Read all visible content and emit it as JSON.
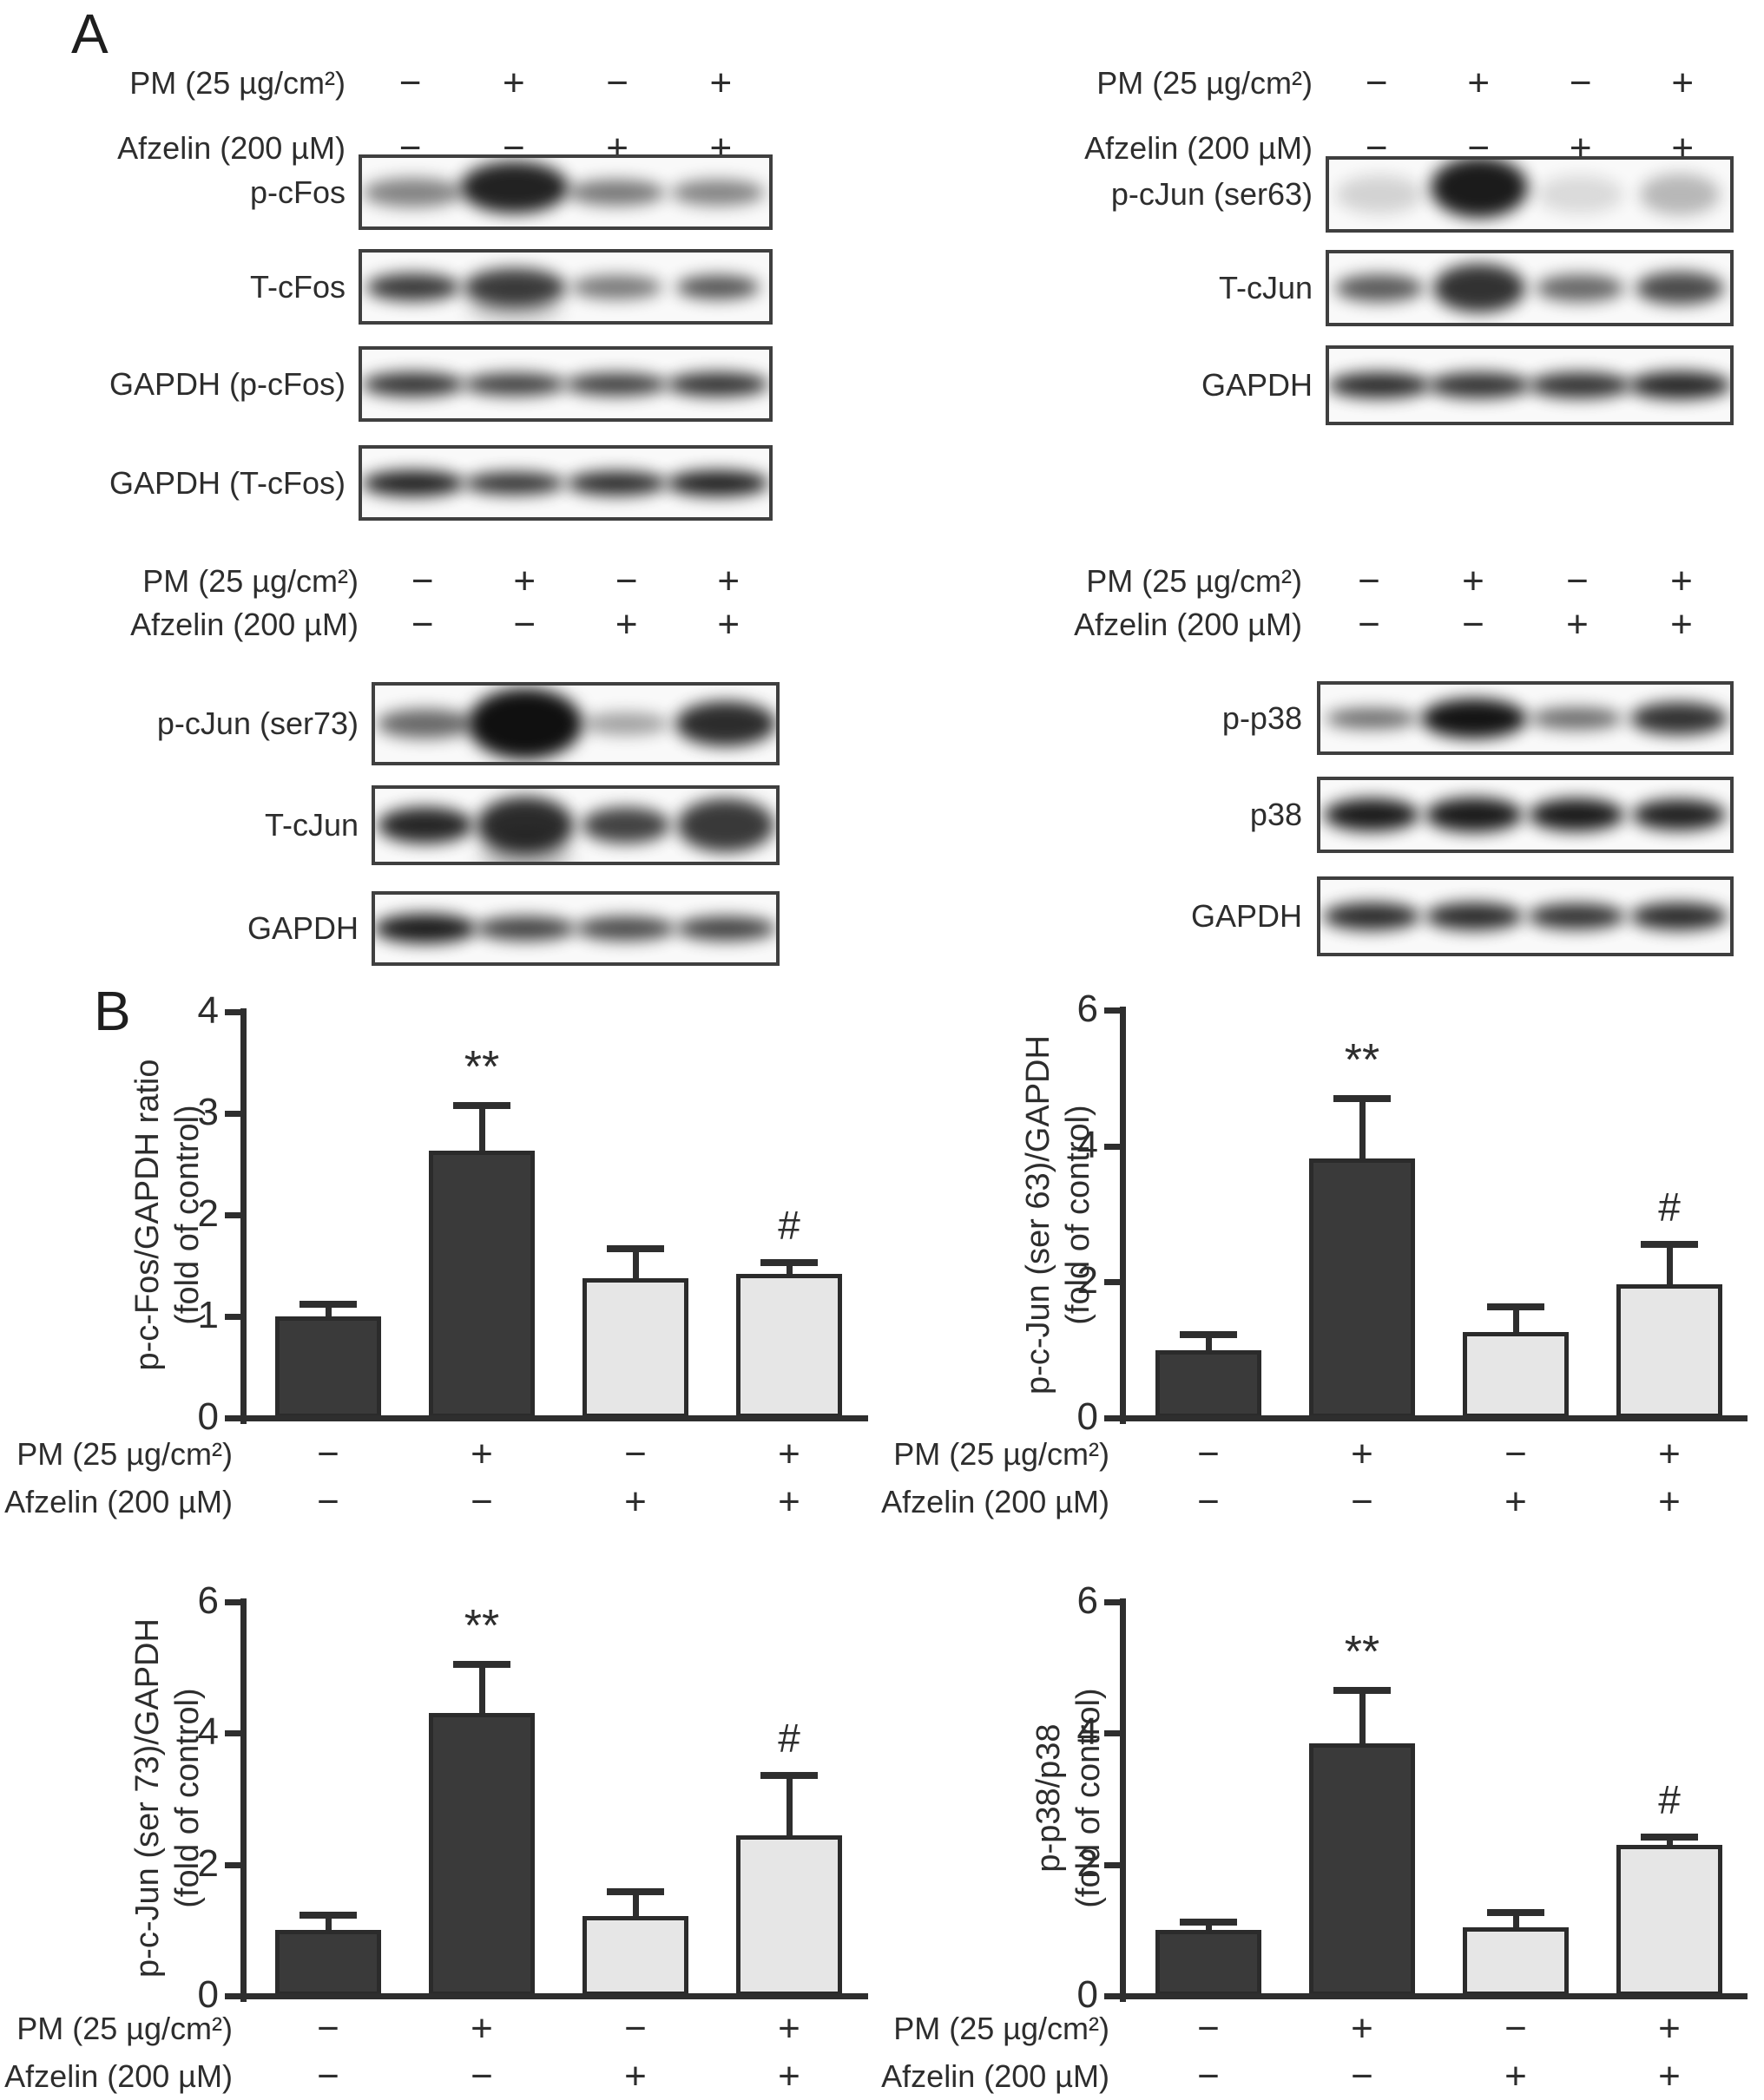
{
  "figure": {
    "panel_a_letter": "A",
    "panel_b_letter": "B"
  },
  "colors": {
    "dark_bar": "#3a3a3a",
    "light_bar": "#e6e6e6",
    "bar_border": "#2b2b2b",
    "axis": "#2e2e2e",
    "band": "#111111"
  },
  "conditions": {
    "pm_label": "PM (25 µg/cm²)",
    "afzelin_label": "Afzelin (200 µM)",
    "pm_signs": [
      "−",
      "+",
      "−",
      "+"
    ],
    "afzelin_signs": [
      "−",
      "−",
      "+",
      "+"
    ]
  },
  "blot_groups": [
    {
      "id": "g1",
      "blots": [
        {
          "label": "p-cFos",
          "bands": [
            {
              "w": 115,
              "h": 34,
              "o": 0.5
            },
            {
              "w": 125,
              "h": 60,
              "o": 0.92,
              "dy": -6
            },
            {
              "w": 112,
              "h": 30,
              "o": 0.55
            },
            {
              "w": 108,
              "h": 30,
              "o": 0.5
            }
          ]
        },
        {
          "label": "T-cFos",
          "bands": [
            {
              "w": 108,
              "h": 32,
              "o": 0.82
            },
            {
              "w": 118,
              "h": 44,
              "o": 0.8,
              "s": 1
            },
            {
              "w": 105,
              "h": 28,
              "o": 0.55
            },
            {
              "w": 96,
              "h": 28,
              "o": 0.7
            }
          ]
        },
        {
          "label": "GAPDH (p-cFos)",
          "bands": [
            {
              "w": 118,
              "h": 28,
              "o": 0.85
            },
            {
              "w": 118,
              "h": 26,
              "o": 0.8
            },
            {
              "w": 118,
              "h": 26,
              "o": 0.8
            },
            {
              "w": 118,
              "h": 28,
              "o": 0.85
            }
          ]
        },
        {
          "label": "GAPDH (T-cFos)",
          "bands": [
            {
              "w": 118,
              "h": 30,
              "o": 0.92
            },
            {
              "w": 115,
              "h": 26,
              "o": 0.85
            },
            {
              "w": 115,
              "h": 28,
              "o": 0.88
            },
            {
              "w": 118,
              "h": 30,
              "o": 0.92
            }
          ]
        }
      ]
    },
    {
      "id": "g2",
      "blots": [
        {
          "label": "p-cJun (ser63)",
          "bands": [
            {
              "w": 100,
              "h": 44,
              "o": 0.16
            },
            {
              "w": 112,
              "h": 70,
              "o": 0.95,
              "dy": -8
            },
            {
              "w": 100,
              "h": 44,
              "o": 0.13
            },
            {
              "w": 92,
              "h": 48,
              "o": 0.28
            }
          ]
        },
        {
          "label": "T-cJun",
          "bands": [
            {
              "w": 102,
              "h": 32,
              "o": 0.68
            },
            {
              "w": 106,
              "h": 56,
              "o": 0.85
            },
            {
              "w": 102,
              "h": 32,
              "o": 0.62
            },
            {
              "w": 102,
              "h": 38,
              "o": 0.75
            }
          ]
        },
        {
          "label": "GAPDH",
          "bands": [
            {
              "w": 118,
              "h": 30,
              "o": 0.88
            },
            {
              "w": 118,
              "h": 30,
              "o": 0.85
            },
            {
              "w": 118,
              "h": 30,
              "o": 0.85
            },
            {
              "w": 118,
              "h": 32,
              "o": 0.9
            }
          ]
        }
      ]
    },
    {
      "id": "g3",
      "blots": [
        {
          "label": "p-cJun (ser73)",
          "bands": [
            {
              "w": 112,
              "h": 34,
              "o": 0.62
            },
            {
              "w": 132,
              "h": 82,
              "o": 1
            },
            {
              "w": 100,
              "h": 26,
              "o": 0.38
            },
            {
              "w": 116,
              "h": 52,
              "o": 0.88
            }
          ]
        },
        {
          "label": "T-cJun",
          "bands": [
            {
              "w": 110,
              "h": 42,
              "o": 0.9
            },
            {
              "w": 112,
              "h": 66,
              "o": 0.88,
              "s": 1
            },
            {
              "w": 102,
              "h": 42,
              "o": 0.78
            },
            {
              "w": 112,
              "h": 62,
              "o": 0.82
            }
          ]
        },
        {
          "label": "GAPDH",
          "bands": [
            {
              "w": 118,
              "h": 34,
              "o": 0.95
            },
            {
              "w": 115,
              "h": 28,
              "o": 0.78
            },
            {
              "w": 115,
              "h": 28,
              "o": 0.75
            },
            {
              "w": 115,
              "h": 28,
              "o": 0.78
            }
          ]
        }
      ]
    },
    {
      "id": "g4",
      "blots": [
        {
          "label": "p-p38",
          "bands": [
            {
              "w": 106,
              "h": 24,
              "o": 0.6
            },
            {
              "w": 122,
              "h": 46,
              "o": 0.98
            },
            {
              "w": 106,
              "h": 26,
              "o": 0.6
            },
            {
              "w": 112,
              "h": 38,
              "o": 0.85
            }
          ]
        },
        {
          "label": "p38",
          "bands": [
            {
              "w": 110,
              "h": 38,
              "o": 0.95
            },
            {
              "w": 112,
              "h": 40,
              "o": 0.95
            },
            {
              "w": 110,
              "h": 38,
              "o": 0.95
            },
            {
              "w": 108,
              "h": 36,
              "o": 0.92
            }
          ]
        },
        {
          "label": "GAPDH",
          "bands": [
            {
              "w": 112,
              "h": 32,
              "o": 0.88
            },
            {
              "w": 112,
              "h": 32,
              "o": 0.88
            },
            {
              "w": 112,
              "h": 30,
              "o": 0.85
            },
            {
              "w": 112,
              "h": 32,
              "o": 0.88
            }
          ]
        }
      ]
    }
  ],
  "chart_data": [
    {
      "id": "c1",
      "type": "bar",
      "ylabel": [
        "p-c-Fos/GAPDH ratio",
        "(fold of control)"
      ],
      "ylim": [
        0,
        4
      ],
      "yticks": [
        0,
        1,
        2,
        3,
        4
      ],
      "categories": [
        "PM−/Afzelin−",
        "PM+/Afzelin−",
        "PM−/Afzelin+",
        "PM+/Afzelin+"
      ],
      "values": [
        1.0,
        2.63,
        1.38,
        1.42
      ],
      "errors_up": [
        0.12,
        0.45,
        0.29,
        0.11
      ],
      "annotations": [
        "",
        "**",
        "",
        "#"
      ],
      "fills": [
        "dark",
        "dark",
        "light",
        "light"
      ],
      "x_rows": [
        {
          "label": "PM (25 µg/cm²)",
          "signs": [
            "−",
            "+",
            "−",
            "+"
          ]
        },
        {
          "label": "Afzelin (200 µM)",
          "signs": [
            "−",
            "−",
            "+",
            "+"
          ]
        }
      ]
    },
    {
      "id": "c2",
      "type": "bar",
      "ylabel": [
        "p-c-Jun (ser 63)/GAPDH",
        "(fold of control)"
      ],
      "ylim": [
        0,
        6
      ],
      "yticks": [
        0,
        2,
        4,
        6
      ],
      "categories": [
        "PM−/Afzelin−",
        "PM+/Afzelin−",
        "PM−/Afzelin+",
        "PM+/Afzelin+"
      ],
      "values": [
        1.0,
        3.82,
        1.27,
        1.97
      ],
      "errors_up": [
        0.23,
        0.88,
        0.36,
        0.58
      ],
      "annotations": [
        "",
        "**",
        "",
        "#"
      ],
      "fills": [
        "dark",
        "dark",
        "light",
        "light"
      ],
      "x_rows": [
        {
          "label": "PM (25 µg/cm²)",
          "signs": [
            "−",
            "+",
            "−",
            "+"
          ]
        },
        {
          "label": "Afzelin (200 µM)",
          "signs": [
            "−",
            "−",
            "+",
            "+"
          ]
        }
      ]
    },
    {
      "id": "c3",
      "type": "bar",
      "ylabel": [
        "p-c-Jun (ser 73)/GAPDH",
        "(fold of control)"
      ],
      "ylim": [
        0,
        6
      ],
      "yticks": [
        0,
        2,
        4,
        6
      ],
      "categories": [
        "PM−/Afzelin−",
        "PM+/Afzelin−",
        "PM−/Afzelin+",
        "PM+/Afzelin+"
      ],
      "values": [
        1.0,
        4.3,
        1.22,
        2.45
      ],
      "errors_up": [
        0.23,
        0.75,
        0.36,
        0.9
      ],
      "annotations": [
        "",
        "**",
        "",
        "#"
      ],
      "fills": [
        "dark",
        "dark",
        "light",
        "light"
      ],
      "x_rows": [
        {
          "label": "PM (25 µg/cm²)",
          "signs": [
            "−",
            "+",
            "−",
            "+"
          ]
        },
        {
          "label": "Afzelin (200 µM)",
          "signs": [
            "−",
            "−",
            "+",
            "+"
          ]
        }
      ]
    },
    {
      "id": "c4",
      "type": "bar",
      "ylabel": [
        "p-p38/p38",
        "(fold of control)"
      ],
      "ylim": [
        0,
        6
      ],
      "yticks": [
        0,
        2,
        4,
        6
      ],
      "categories": [
        "PM−/Afzelin−",
        "PM+/Afzelin−",
        "PM−/Afzelin+",
        "PM+/Afzelin+"
      ],
      "values": [
        1.0,
        3.85,
        1.05,
        2.3
      ],
      "errors_up": [
        0.12,
        0.8,
        0.22,
        0.12
      ],
      "annotations": [
        "",
        "**",
        "",
        "#"
      ],
      "fills": [
        "dark",
        "dark",
        "light",
        "light"
      ],
      "x_rows": [
        {
          "label": "PM (25 µg/cm²)",
          "signs": [
            "−",
            "+",
            "−",
            "+"
          ]
        },
        {
          "label": "Afzelin (200 µM)",
          "signs": [
            "−",
            "−",
            "+",
            "+"
          ]
        }
      ]
    }
  ]
}
